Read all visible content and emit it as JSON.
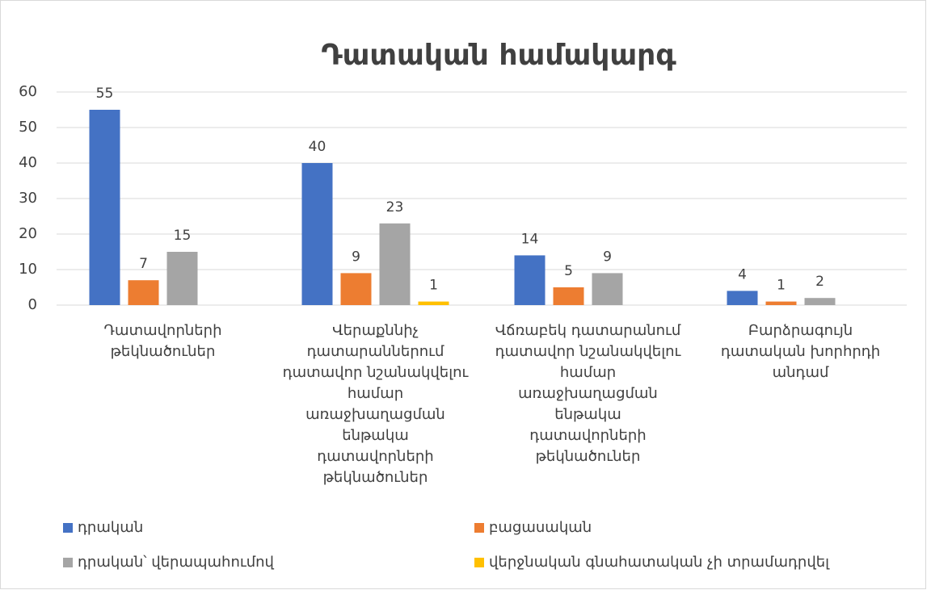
{
  "chart_data": {
    "type": "bar",
    "title": "Դատական համակարգ",
    "categories": [
      "Դատավորների թեկնածուներ",
      "Վերաքննիչ դատարաններում դատավոր նշանակվելու համար առաջխաղացման ենթակա դատավորների թեկնածուներ",
      "Վճռաբեկ դատարանում դատավոր նշանակվելու համար առաջխաղացման ենթակա դատավորների թեկնածուներ",
      "Բարձրագույն դատական խորհրդի անդամ"
    ],
    "series": [
      {
        "name": "դրական",
        "color": "#4472c4",
        "values": [
          55,
          40,
          14,
          4
        ]
      },
      {
        "name": "բացասական",
        "color": "#ed7d31",
        "values": [
          7,
          9,
          5,
          1
        ]
      },
      {
        "name": "դրական՝ վերապահումով",
        "color": "#a5a5a5",
        "values": [
          15,
          23,
          9,
          2
        ]
      },
      {
        "name": "վերջնական գնահատական չի տրամադրվել",
        "color": "#ffc000",
        "values": [
          null,
          1,
          null,
          null
        ]
      }
    ],
    "ylim": [
      0,
      60
    ],
    "yticks": [
      0,
      10,
      20,
      30,
      40,
      50,
      60
    ],
    "grid": true,
    "legend": "bottom"
  }
}
